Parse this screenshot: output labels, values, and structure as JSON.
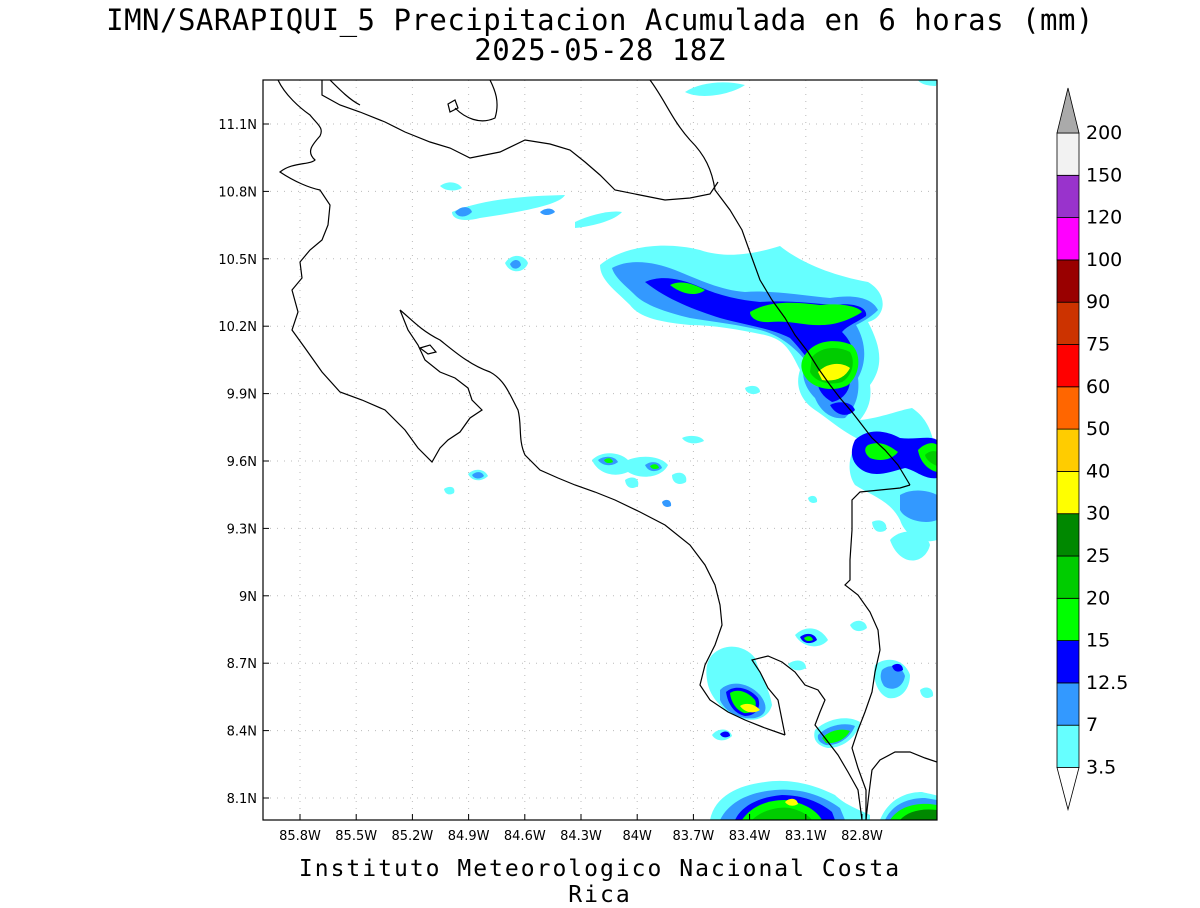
{
  "header": {
    "title": "IMN/SARAPIQUI_5 Precipitacion Acumulada en 6 horas (mm)",
    "subtitle": "2025-05-28 18Z"
  },
  "map": {
    "lon_ticks": [
      "85.8W",
      "85.5W",
      "85.2W",
      "84.9W",
      "84.6W",
      "84.3W",
      "84W",
      "83.7W",
      "83.4W",
      "83.1W",
      "82.8W"
    ],
    "lat_ticks": [
      "11.1N",
      "10.8N",
      "10.5N",
      "10.2N",
      "9.9N",
      "9.6N",
      "9.3N",
      "9N",
      "8.7N",
      "8.4N",
      "8.1N"
    ]
  },
  "colorbar": {
    "labels": [
      "3.5",
      "7",
      "12.5",
      "15",
      "20",
      "25",
      "30",
      "40",
      "50",
      "60",
      "75",
      "90",
      "100",
      "120",
      "150",
      "200"
    ],
    "colors": [
      "#66ffff",
      "#3399ff",
      "#0000ff",
      "#00ff00",
      "#00cc00",
      "#008800",
      "#ffff00",
      "#ffcc00",
      "#ff6600",
      "#ff0000",
      "#cc3300",
      "#990000",
      "#ff00ff",
      "#9933cc",
      "#f2f2f2",
      "#aaaaaa"
    ]
  },
  "footer": "Instituto Meteorologico Nacional Costa Rica"
}
